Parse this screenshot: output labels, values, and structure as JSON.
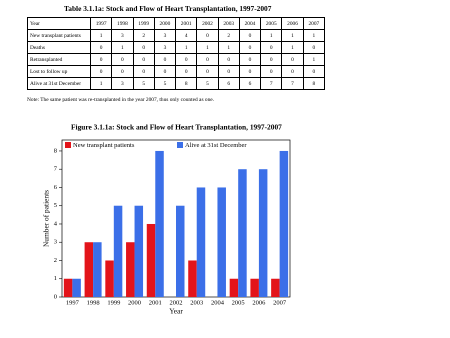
{
  "title": "Table 3.1.1a: Stock and Flow of Heart Transplantation, 1997-2007",
  "table": {
    "columns": [
      "Year",
      "1997",
      "1998",
      "1999",
      "2000",
      "2001",
      "2002",
      "2003",
      "2004",
      "2005",
      "2006",
      "2007"
    ],
    "rows": [
      {
        "label": "New transplant patients",
        "values": [
          1,
          3,
          2,
          3,
          4,
          0,
          2,
          0,
          1,
          1,
          1
        ]
      },
      {
        "label": "Deaths",
        "values": [
          0,
          1,
          0,
          3,
          1,
          1,
          1,
          0,
          0,
          1,
          0
        ]
      },
      {
        "label": "Retransplanted",
        "values": [
          0,
          0,
          0,
          0,
          0,
          0,
          0,
          0,
          0,
          0,
          1
        ]
      },
      {
        "label": "Lost to follow up",
        "values": [
          0,
          0,
          0,
          0,
          0,
          0,
          0,
          0,
          0,
          0,
          0
        ]
      },
      {
        "label": "Alive at 31st December",
        "values": [
          1,
          3,
          5,
          5,
          8,
          5,
          6,
          6,
          7,
          7,
          8
        ]
      }
    ]
  },
  "note": "Note: The same patient was re-transplanted in the year 2007, thus only counted as one.",
  "chart_data": {
    "type": "bar",
    "title": "Figure 3.1.1a: Stock and Flow of Heart Transplantation, 1997-2007",
    "x_label": "Year",
    "y_label": "Number of patients",
    "categories": [
      "1997",
      "1998",
      "1999",
      "2000",
      "2001",
      "2002",
      "2003",
      "2004",
      "2005",
      "2006",
      "2007"
    ],
    "series": [
      {
        "name": "New transplant patients",
        "color": "#e3141a",
        "values": [
          1,
          3,
          2,
          3,
          4,
          0,
          2,
          0,
          1,
          1,
          1
        ]
      },
      {
        "name": "Alive at 31st December",
        "color": "#3b6fe8",
        "values": [
          1,
          3,
          5,
          5,
          8,
          5,
          6,
          6,
          7,
          7,
          8
        ]
      }
    ],
    "ylim": [
      0,
      8.6
    ],
    "yticks": [
      0,
      1,
      2,
      3,
      4,
      5,
      6,
      7,
      8
    ]
  }
}
